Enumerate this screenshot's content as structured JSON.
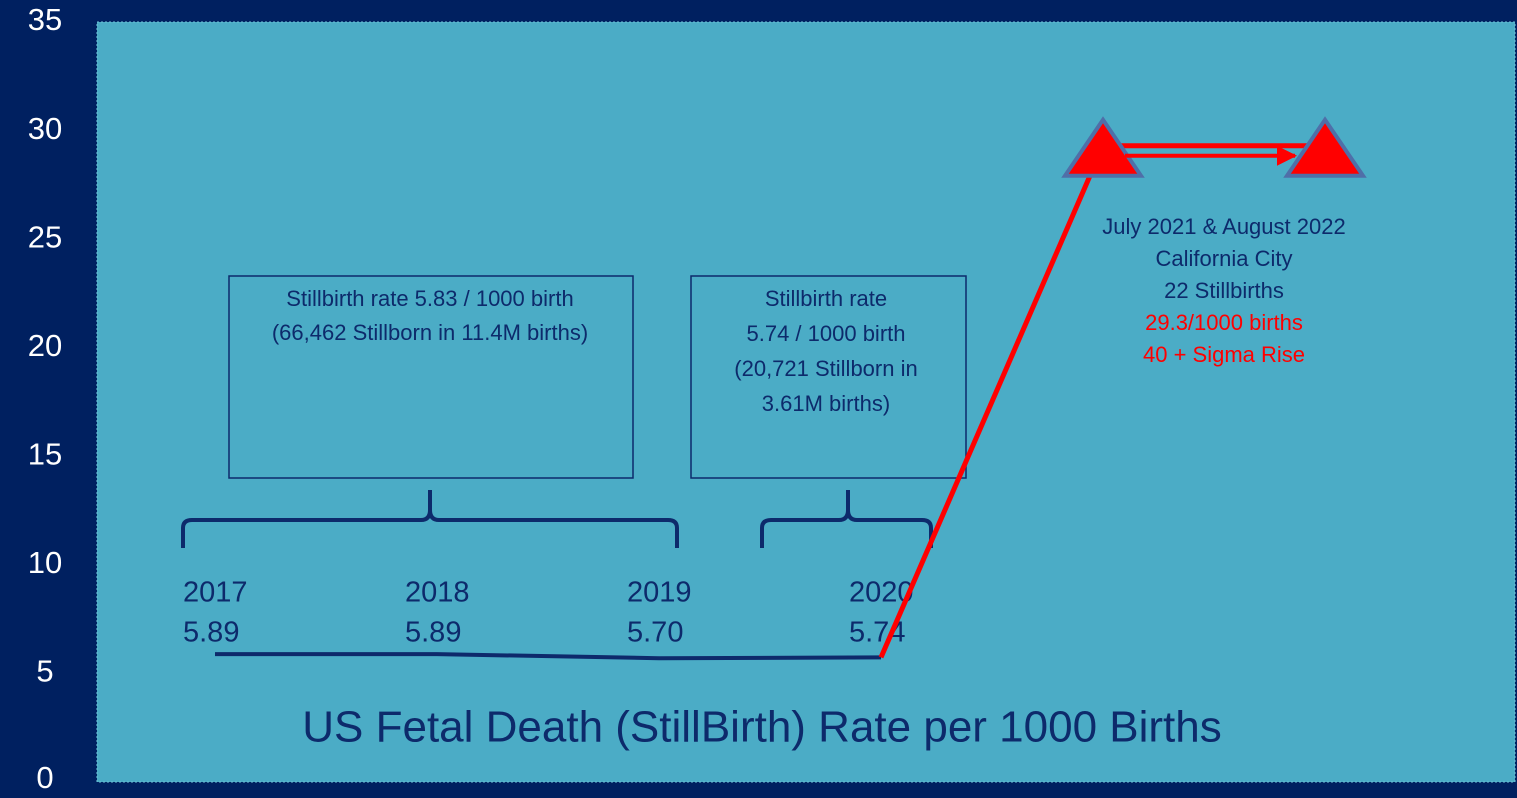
{
  "chart_data": {
    "type": "line",
    "title": "US Fetal Death (StillBirth) Rate per 1000 Births",
    "categories": [
      "2017",
      "2018",
      "2019",
      "2020",
      null,
      null
    ],
    "series": [
      {
        "color": "#0d2a6b",
        "values": [
          5.89,
          5.89,
          5.7,
          5.74,
          null,
          null
        ],
        "value_labels": [
          "5.89",
          "5.89",
          "5.70",
          "5.74",
          null,
          null
        ]
      },
      {
        "color": "#ff0000",
        "values": [
          null,
          null,
          null,
          5.74,
          29.3,
          29.3
        ]
      }
    ],
    "ylim": [
      0,
      35
    ],
    "yticks": [
      0,
      5,
      10,
      15,
      20,
      25,
      30,
      35
    ],
    "annotations": {
      "box1": [
        "Stillbirth rate 5.83 / 1000 birth",
        "(66,462 Stillborn in 11.4M births)"
      ],
      "box2": [
        "Stillbirth rate",
        "5.74 / 1000 birth",
        "(20,721 Stillborn in",
        "3.61M births)"
      ],
      "right": [
        "July 2021 & August 2022",
        "California City",
        "22 Stillbirths"
      ],
      "right_red": [
        "29.3/1000 births",
        "40 + Sigma Rise"
      ]
    }
  }
}
